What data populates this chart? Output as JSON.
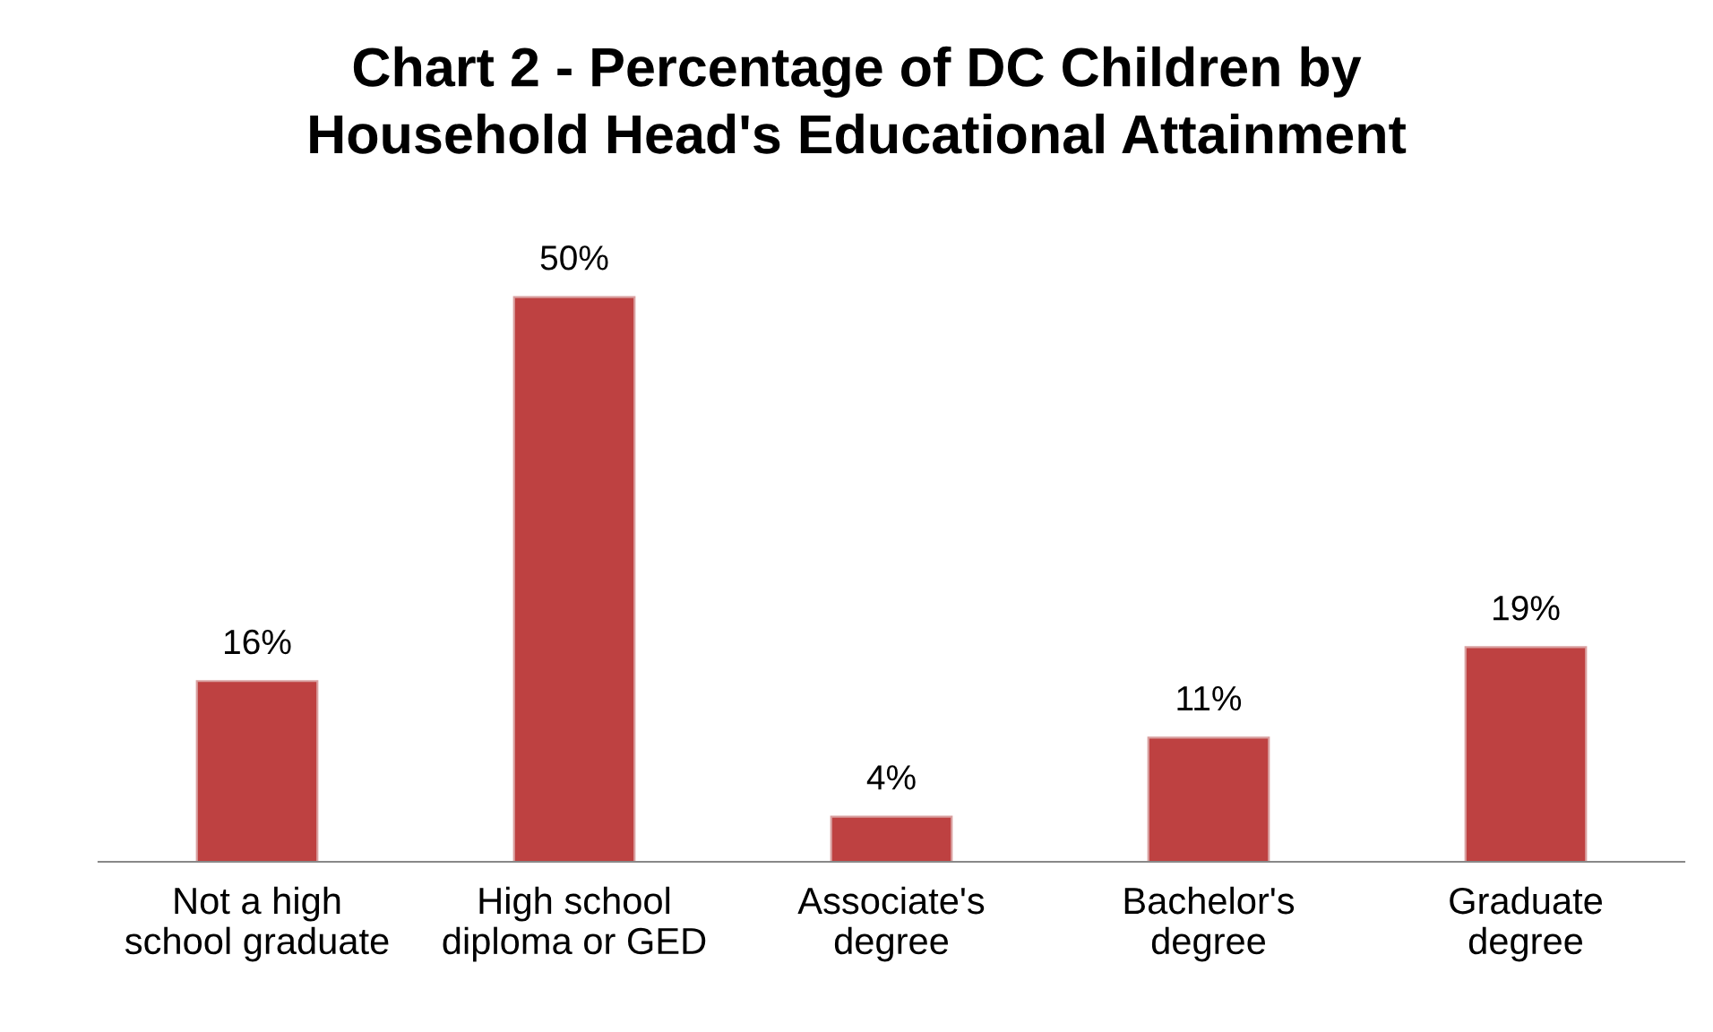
{
  "chart_data": {
    "type": "bar",
    "title": "Chart 2 - Percentage of DC Children by\nHousehold Head's Educational Attainment",
    "categories": [
      "Not a high\nschool graduate",
      "High school\ndiploma or GED",
      "Associate's\ndegree",
      "Bachelor's\ndegree",
      "Graduate\ndegree"
    ],
    "values": [
      16,
      50,
      4,
      11,
      19
    ],
    "value_labels": [
      "16%",
      "50%",
      "4%",
      "11%",
      "19%"
    ],
    "color": "#be4141",
    "grid": false,
    "legend": false
  }
}
